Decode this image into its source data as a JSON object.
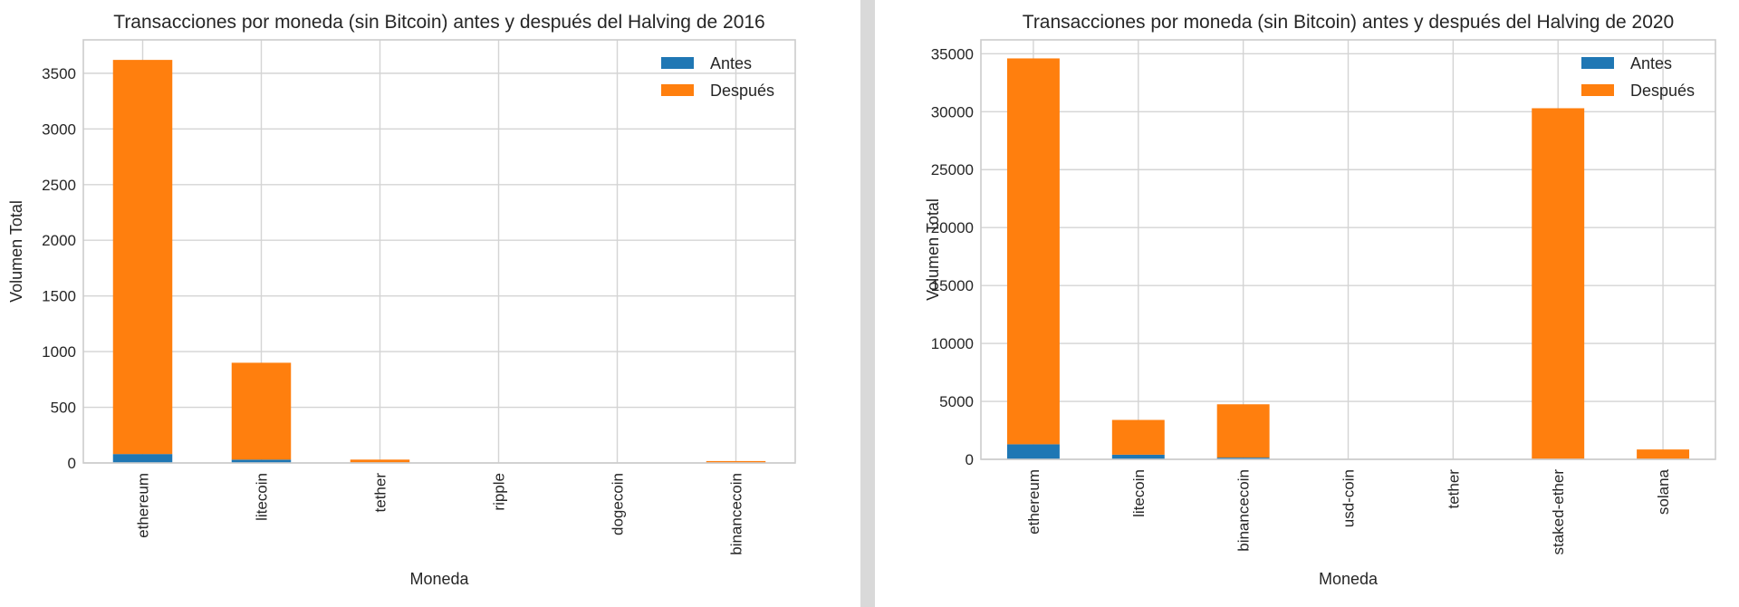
{
  "chart_data": [
    {
      "type": "bar",
      "stacked": true,
      "title": "Transacciones por moneda (sin Bitcoin) antes y después del Halving de 2016",
      "xlabel": "Moneda",
      "ylabel": "Volumen Total",
      "categories": [
        "ethereum",
        "litecoin",
        "tether",
        "ripple",
        "dogecoin",
        "binancecoin"
      ],
      "series": [
        {
          "name": "Antes",
          "color": "#1f77b4",
          "values": [
            80,
            30,
            5,
            0,
            0,
            2
          ]
        },
        {
          "name": "Después",
          "color": "#ff7f0e",
          "values": [
            3540,
            870,
            25,
            0,
            0,
            15
          ]
        }
      ],
      "ylim": [
        0,
        3800
      ],
      "yticks": [
        0,
        500,
        1000,
        1500,
        2000,
        2500,
        3000,
        3500
      ],
      "grid": true,
      "legend": "top-right"
    },
    {
      "type": "bar",
      "stacked": true,
      "title": "Transacciones por moneda (sin Bitcoin) antes y después del Halving de 2020",
      "xlabel": "Moneda",
      "ylabel": "Volumen Total",
      "categories": [
        "ethereum",
        "litecoin",
        "binancecoin",
        "usd-coin",
        "tether",
        "staked-ether",
        "solana"
      ],
      "series": [
        {
          "name": "Antes",
          "color": "#1f77b4",
          "values": [
            1300,
            400,
            150,
            0,
            0,
            0,
            0
          ]
        },
        {
          "name": "Después",
          "color": "#ff7f0e",
          "values": [
            33300,
            3000,
            4600,
            0,
            0,
            30300,
            850
          ]
        }
      ],
      "ylim": [
        0,
        36200
      ],
      "yticks": [
        0,
        5000,
        10000,
        15000,
        20000,
        25000,
        30000,
        35000
      ],
      "grid": true,
      "legend": "top-right"
    }
  ]
}
